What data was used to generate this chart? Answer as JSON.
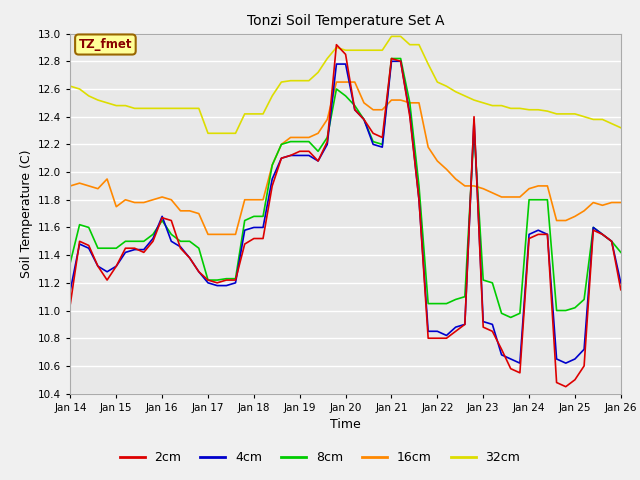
{
  "title": "Tonzi Soil Temperature Set A",
  "xlabel": "Time",
  "ylabel": "Soil Temperature (C)",
  "ylim": [
    10.4,
    13.0
  ],
  "xlim": [
    0,
    12
  ],
  "x_tick_labels": [
    "Jan 14",
    "Jan 15",
    "Jan 16",
    "Jan 17",
    "Jan 18",
    "Jan 19",
    "Jan 20",
    "Jan 21",
    "Jan 22",
    "Jan 23",
    "Jan 24",
    "Jan 25",
    "Jan 26"
  ],
  "annotation_text": "TZ_fmet",
  "annotation_bg": "#ffff99",
  "annotation_border": "#996600",
  "colors": {
    "2cm": "#dd0000",
    "4cm": "#0000cc",
    "8cm": "#00cc00",
    "16cm": "#ff8800",
    "32cm": "#dddd00"
  },
  "background_color": "#e8e8e8",
  "grid_color": "#ffffff",
  "fig_bg": "#f0f0f0",
  "data": {
    "2cm": [
      11.05,
      11.5,
      11.47,
      11.32,
      11.22,
      11.32,
      11.45,
      11.45,
      11.42,
      11.5,
      11.67,
      11.65,
      11.45,
      11.38,
      11.28,
      11.22,
      11.2,
      11.22,
      11.22,
      11.48,
      11.52,
      11.52,
      11.9,
      12.1,
      12.12,
      12.15,
      12.15,
      12.08,
      12.22,
      12.92,
      12.85,
      12.45,
      12.38,
      12.28,
      12.25,
      12.82,
      12.8,
      12.4,
      11.8,
      10.8,
      10.8,
      10.8,
      10.85,
      10.9,
      12.4,
      10.88,
      10.85,
      10.72,
      10.58,
      10.55,
      11.52,
      11.55,
      11.55,
      10.48,
      10.45,
      10.5,
      10.6,
      11.58,
      11.55,
      11.5,
      11.15
    ],
    "4cm": [
      11.15,
      11.48,
      11.45,
      11.32,
      11.28,
      11.32,
      11.42,
      11.44,
      11.44,
      11.52,
      11.68,
      11.5,
      11.46,
      11.38,
      11.28,
      11.2,
      11.18,
      11.18,
      11.2,
      11.58,
      11.6,
      11.6,
      11.95,
      12.1,
      12.12,
      12.12,
      12.12,
      12.08,
      12.2,
      12.78,
      12.78,
      12.45,
      12.38,
      12.2,
      12.18,
      12.8,
      12.8,
      12.42,
      11.8,
      10.85,
      10.85,
      10.82,
      10.88,
      10.9,
      12.38,
      10.92,
      10.9,
      10.68,
      10.65,
      10.62,
      11.55,
      11.58,
      11.55,
      10.65,
      10.62,
      10.65,
      10.72,
      11.6,
      11.55,
      11.5,
      11.2
    ],
    "8cm": [
      11.35,
      11.62,
      11.6,
      11.45,
      11.45,
      11.45,
      11.5,
      11.5,
      11.5,
      11.55,
      11.65,
      11.55,
      11.5,
      11.5,
      11.45,
      11.22,
      11.22,
      11.23,
      11.23,
      11.65,
      11.68,
      11.68,
      12.05,
      12.2,
      12.22,
      12.22,
      12.22,
      12.15,
      12.25,
      12.6,
      12.55,
      12.48,
      12.38,
      12.22,
      12.2,
      12.82,
      12.82,
      12.5,
      11.9,
      11.05,
      11.05,
      11.05,
      11.08,
      11.1,
      12.3,
      11.22,
      11.2,
      10.98,
      10.95,
      10.98,
      11.8,
      11.8,
      11.8,
      11.0,
      11.0,
      11.02,
      11.08,
      11.6,
      11.55,
      11.5,
      11.42
    ],
    "16cm": [
      11.9,
      11.92,
      11.9,
      11.88,
      11.95,
      11.75,
      11.8,
      11.78,
      11.78,
      11.8,
      11.82,
      11.8,
      11.72,
      11.72,
      11.7,
      11.55,
      11.55,
      11.55,
      11.55,
      11.8,
      11.8,
      11.8,
      12.05,
      12.2,
      12.25,
      12.25,
      12.25,
      12.28,
      12.38,
      12.65,
      12.65,
      12.65,
      12.5,
      12.45,
      12.45,
      12.52,
      12.52,
      12.5,
      12.5,
      12.18,
      12.08,
      12.02,
      11.95,
      11.9,
      11.9,
      11.88,
      11.85,
      11.82,
      11.82,
      11.82,
      11.88,
      11.9,
      11.9,
      11.65,
      11.65,
      11.68,
      11.72,
      11.78,
      11.76,
      11.78,
      11.78
    ],
    "32cm": [
      12.62,
      12.6,
      12.55,
      12.52,
      12.5,
      12.48,
      12.48,
      12.46,
      12.46,
      12.46,
      12.46,
      12.46,
      12.46,
      12.46,
      12.46,
      12.28,
      12.28,
      12.28,
      12.28,
      12.42,
      12.42,
      12.42,
      12.55,
      12.65,
      12.66,
      12.66,
      12.66,
      12.72,
      12.82,
      12.9,
      12.88,
      12.88,
      12.88,
      12.88,
      12.88,
      12.98,
      12.98,
      12.92,
      12.92,
      12.78,
      12.65,
      12.62,
      12.58,
      12.55,
      12.52,
      12.5,
      12.48,
      12.48,
      12.46,
      12.46,
      12.45,
      12.45,
      12.44,
      12.42,
      12.42,
      12.42,
      12.4,
      12.38,
      12.38,
      12.35,
      12.32
    ]
  }
}
